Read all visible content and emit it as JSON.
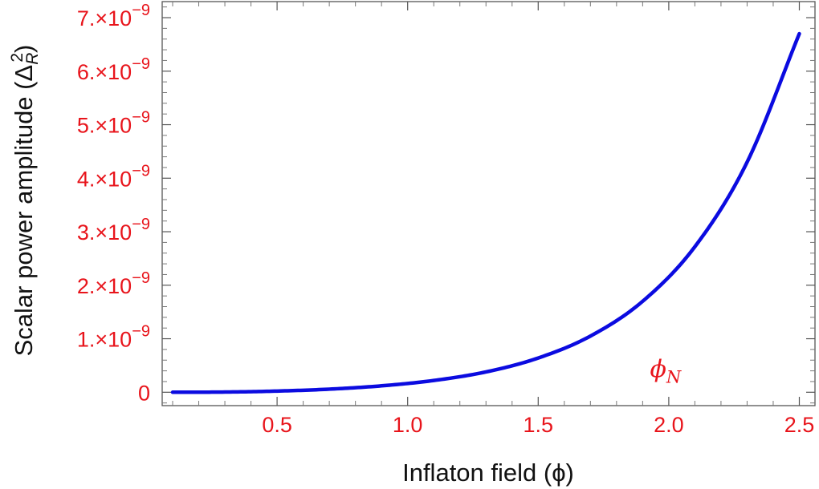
{
  "chart_data": {
    "type": "line",
    "xlabel": "Inflaton field (ϕ)",
    "ylabel_main": "Scalar power amplitude (Δ",
    "ylabel_sub": "R",
    "ylabel_sup": "2",
    "ylabel_close": ")",
    "xlim": [
      0.06,
      2.56
    ],
    "ylim": [
      -2.5e-10,
      7.3e-09
    ],
    "x_ticks": [
      {
        "value": 0.5,
        "label": "0.5"
      },
      {
        "value": 1.0,
        "label": "1.0"
      },
      {
        "value": 1.5,
        "label": "1.5"
      },
      {
        "value": 2.0,
        "label": "2.0"
      },
      {
        "value": 2.5,
        "label": "2.5"
      }
    ],
    "y_ticks": [
      {
        "value": 0,
        "label": "0",
        "exp": ""
      },
      {
        "value": 1e-09,
        "label": "1.×10",
        "exp": "−9"
      },
      {
        "value": 2e-09,
        "label": "2.×10",
        "exp": "−9"
      },
      {
        "value": 3e-09,
        "label": "3.×10",
        "exp": "−9"
      },
      {
        "value": 4e-09,
        "label": "4.×10",
        "exp": "−9"
      },
      {
        "value": 5e-09,
        "label": "5.×10",
        "exp": "−9"
      },
      {
        "value": 6e-09,
        "label": "6.×10",
        "exp": "−9"
      },
      {
        "value": 7e-09,
        "label": "7.×10",
        "exp": "−9"
      }
    ],
    "series": [
      {
        "color": "#0b0be0",
        "x": [
          0.1,
          0.3,
          0.5,
          0.7,
          0.9,
          1.1,
          1.3,
          1.5,
          1.7,
          1.9,
          2.1,
          2.3,
          2.5
        ],
        "y": [
          0,
          4e-12,
          2.2e-11,
          5.8e-11,
          1.2e-10,
          2.2e-10,
          3.8e-10,
          6.4e-10,
          1.05e-09,
          1.7e-09,
          2.72e-09,
          4.3e-09,
          6.7e-09
        ]
      }
    ],
    "annotation": {
      "text": "ϕ",
      "sub": "N",
      "x": 2.0,
      "y": 2.8e-10
    },
    "grid": false,
    "frame": true
  }
}
